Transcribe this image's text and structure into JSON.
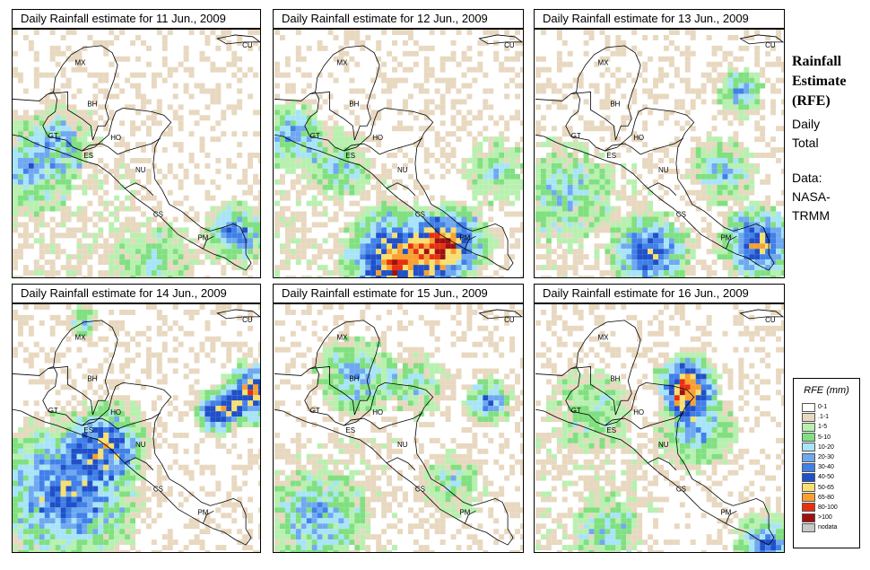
{
  "panels": [
    {
      "title": "Daily Rainfall estimate for  11 Jun., 2009"
    },
    {
      "title": "Daily Rainfall estimate for  12 Jun., 2009"
    },
    {
      "title": "Daily Rainfall estimate for  13 Jun., 2009"
    },
    {
      "title": "Daily Rainfall estimate for  14 Jun., 2009"
    },
    {
      "title": "Daily Rainfall estimate for  15 Jun., 2009"
    },
    {
      "title": "Daily Rainfall estimate for  16 Jun., 2009"
    }
  ],
  "country_labels": [
    "MX",
    "BH",
    "GT",
    "HO",
    "ES",
    "NU",
    "CS",
    "PM",
    "CU"
  ],
  "side": {
    "title_line1": "Rainfall",
    "title_line2": "Estimate",
    "title_line3": "(RFE)",
    "daily": "Daily",
    "total": "Total",
    "data_label": "Data:",
    "source_line1": "NASA-",
    "source_line2": "TRMM"
  },
  "legend": {
    "title": "RFE (mm)",
    "items": [
      {
        "label": "0-1",
        "color": "#ffffff"
      },
      {
        "label": ".1-1",
        "color": "#e8d8c0"
      },
      {
        "label": "1-5",
        "color": "#b8f0b0"
      },
      {
        "label": "5-10",
        "color": "#80e080"
      },
      {
        "label": "10-20",
        "color": "#a8e4f8"
      },
      {
        "label": "20-30",
        "color": "#70a8f0"
      },
      {
        "label": "30-40",
        "color": "#4080e8"
      },
      {
        "label": "40-50",
        "color": "#2050c8"
      },
      {
        "label": "50-65",
        "color": "#f8e070"
      },
      {
        "label": "65-80",
        "color": "#f8a030"
      },
      {
        "label": "80-100",
        "color": "#e83010"
      },
      {
        "label": ">100",
        "color": "#a01010"
      },
      {
        "label": "nodata",
        "color": "#c8c8c8"
      }
    ]
  }
}
